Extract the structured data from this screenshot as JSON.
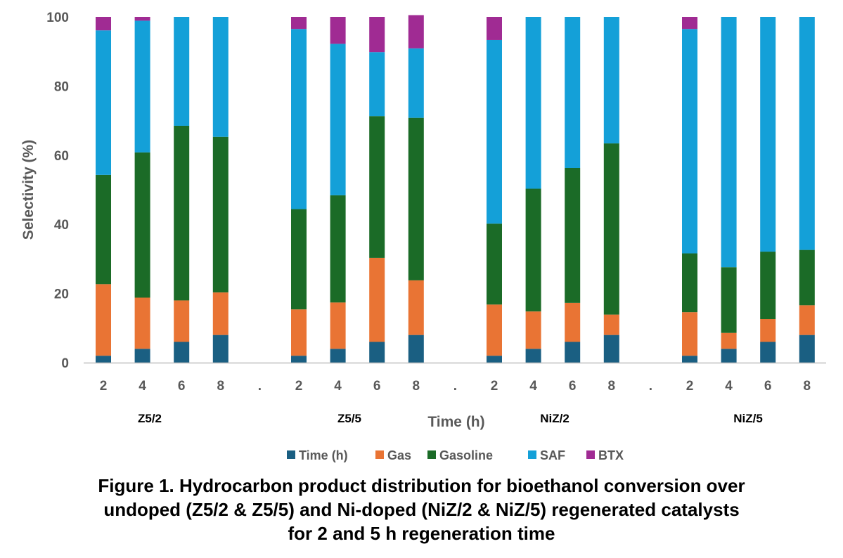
{
  "chart_data": {
    "type": "stacked-bar",
    "ylabel": "Selectivity (%)",
    "xlabel": "Time (h)",
    "ylim": [
      0,
      100
    ],
    "yticks": [
      0,
      20,
      40,
      60,
      80,
      100
    ],
    "groups": [
      {
        "name": "Z5/2",
        "times": [
          "2",
          "4",
          "6",
          "8"
        ]
      },
      {
        "name": "Z5/5",
        "times": [
          "2",
          "4",
          "6",
          "8"
        ]
      },
      {
        "name": "NiZ/2",
        "times": [
          "2",
          "4",
          "6",
          "8"
        ]
      },
      {
        "name": "NiZ/5",
        "times": [
          "2",
          "4",
          "6",
          "8"
        ]
      }
    ],
    "separator_label": ".",
    "series": [
      {
        "name": "Time (h)",
        "color": "#1a5f82",
        "values": [
          [
            2,
            4,
            6,
            8
          ],
          [
            2,
            4,
            6,
            8
          ],
          [
            2,
            4,
            6,
            8
          ],
          [
            2,
            4,
            6,
            8
          ]
        ]
      },
      {
        "name": "Gas",
        "color": "#e97434",
        "values": [
          [
            20.7,
            14.8,
            12,
            12.3
          ],
          [
            13.4,
            13.4,
            24.3,
            15.8
          ],
          [
            14.8,
            10.8,
            11.3,
            5.9
          ],
          [
            12.6,
            4.6,
            6.6,
            8.6
          ]
        ]
      },
      {
        "name": "Gasoline",
        "color": "#1b6b27",
        "values": [
          [
            31.6,
            42,
            50.5,
            45
          ],
          [
            29,
            31,
            41,
            47
          ],
          [
            23.4,
            35.5,
            39,
            49.5
          ],
          [
            17,
            19,
            19.5,
            16
          ]
        ]
      },
      {
        "name": "SAF",
        "color": "#14a0d8",
        "values": [
          [
            41.8,
            38.1,
            31.5,
            34.7
          ],
          [
            52.1,
            43.8,
            18.5,
            20.1
          ],
          [
            53.1,
            49.7,
            43.7,
            36.6
          ],
          [
            64.9,
            72.4,
            67.9,
            67.4
          ]
        ]
      },
      {
        "name": "BTX",
        "color": "#a02b93",
        "values": [
          [
            3.9,
            1.1,
            0,
            0
          ],
          [
            3.5,
            7.8,
            10.2,
            9.6
          ],
          [
            6.7,
            0,
            0,
            0
          ],
          [
            3.5,
            0,
            0,
            0
          ]
        ]
      }
    ],
    "legend_position": "bottom"
  },
  "caption": {
    "line1": "Figure 1.  Hydrocarbon product distribution for bioethanol conversion over",
    "line2": "undoped (Z5/2 & Z5/5) and Ni-doped (NiZ/2 & NiZ/5) regenerated catalysts",
    "line3": "for 2 and 5 h regeneration time"
  }
}
